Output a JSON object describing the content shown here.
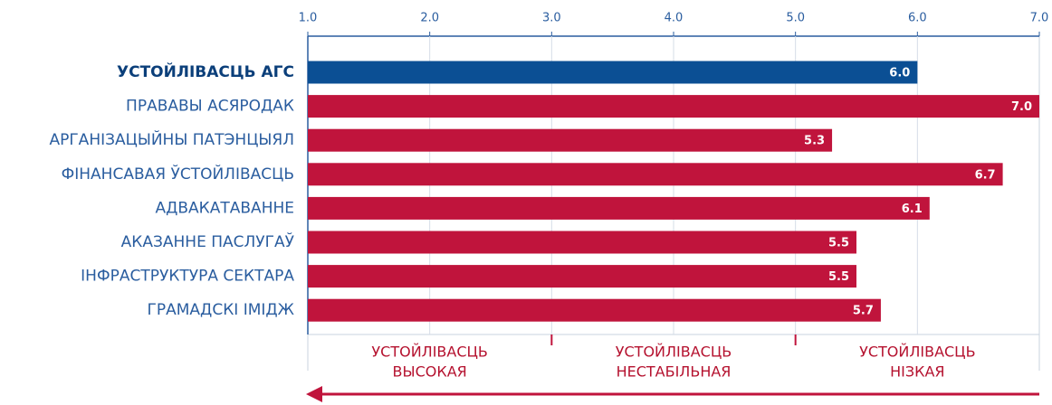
{
  "chart_data": {
    "type": "bar",
    "orientation": "horizontal",
    "categories": [
      "УСТОЙЛІВАСЦЬ АГС",
      "ПРАВАВЫ АСЯРОДАК",
      "АРГАНІЗАЦЫЙНЫ ПАТЭНЦЫЯЛ",
      "ФІНАНСАВАЯ ЎСТОЙЛІВАСЦЬ",
      "АДВАКАТАВАННЕ",
      "АКАЗАННЕ ПАСЛУГАЎ",
      "ІНФРАСТРУКТУРА СЕКТАРА",
      "ГРАМАДСКІ ІМІДЖ"
    ],
    "values": [
      6.0,
      7.0,
      5.3,
      6.7,
      6.1,
      5.5,
      5.5,
      5.7
    ],
    "value_labels": [
      "6.0",
      "7.0",
      "5.3",
      "6.7",
      "6.1",
      "5.5",
      "5.5",
      "5.7"
    ],
    "colors": [
      "#0b4f94",
      "#c0143c",
      "#c0143c",
      "#c0143c",
      "#c0143c",
      "#c0143c",
      "#c0143c",
      "#c0143c"
    ],
    "xlim": [
      1,
      7
    ],
    "xticks": [
      {
        "value": 1,
        "label": "1.0"
      },
      {
        "value": 2,
        "label": "2.0"
      },
      {
        "value": 3,
        "label": "3.0"
      },
      {
        "value": 4,
        "label": "4.0"
      },
      {
        "value": 5,
        "label": "5.0"
      },
      {
        "value": 6,
        "label": "6.0"
      },
      {
        "value": 7,
        "label": "7.0"
      }
    ],
    "grid": true,
    "annotations": [
      {
        "lines": [
          "УСТОЙЛІВАСЦЬ",
          "ВЫСОКАЯ"
        ]
      },
      {
        "lines": [
          "УСТОЙЛІВАСЦЬ",
          "НЕСТАБІЛЬНАЯ"
        ]
      },
      {
        "lines": [
          "УСТОЙЛІВАСЦЬ",
          "НІЗКАЯ"
        ]
      }
    ]
  }
}
